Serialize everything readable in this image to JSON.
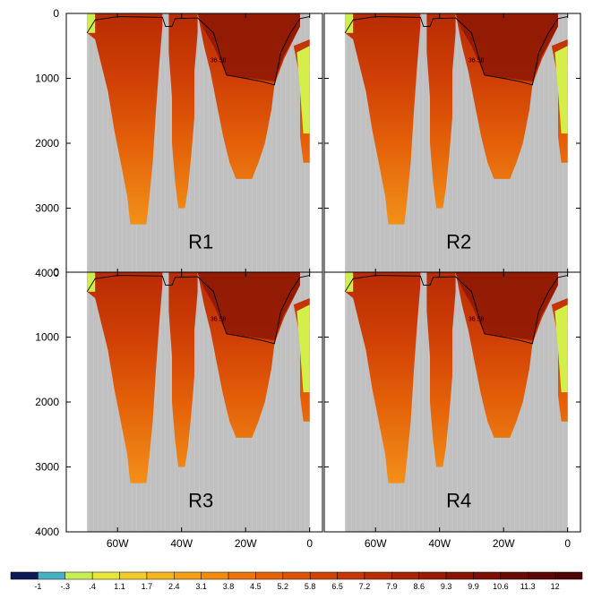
{
  "chart_data": {
    "type": "heatmap",
    "title": "",
    "xlabel": "",
    "ylabel": "",
    "x_ticks": [
      "60W",
      "40W",
      "20W",
      "0"
    ],
    "x_tick_values": [
      -60,
      -40,
      -20,
      0
    ],
    "xlim": [
      -76,
      4
    ],
    "y_ticks": [
      "0",
      "1000",
      "2000",
      "3000",
      "4000"
    ],
    "y_tick_values": [
      0,
      1000,
      2000,
      3000,
      4000
    ],
    "ylim": [
      4000,
      0
    ],
    "contour_label": "36.58",
    "land_color": "#c0c0c0",
    "colorbar": {
      "labels": [
        "-1",
        "-.3",
        ".4",
        "1.1",
        "1.7",
        "2.4",
        "3.1",
        "3.8",
        "4.5",
        "5.2",
        "5.8",
        "6.5",
        "7.2",
        "7.9",
        "8.6",
        "9.3",
        "9.9",
        "10.6",
        "11.3",
        "12"
      ],
      "colors": [
        "#0d1a55",
        "#47b1c2",
        "#c8ee55",
        "#e7e63a",
        "#f2cc2a",
        "#f6b41e",
        "#f59e15",
        "#f28a10",
        "#ec760b",
        "#e56308",
        "#dc5206",
        "#d14305",
        "#c53704",
        "#b72d04",
        "#a82404",
        "#981c04",
        "#891504",
        "#7a1004",
        "#6b0c04",
        "#5c0804",
        "#4e0404"
      ]
    },
    "panels": [
      {
        "label": "R1"
      },
      {
        "label": "R2"
      },
      {
        "label": "R3"
      },
      {
        "label": "R4"
      }
    ]
  }
}
